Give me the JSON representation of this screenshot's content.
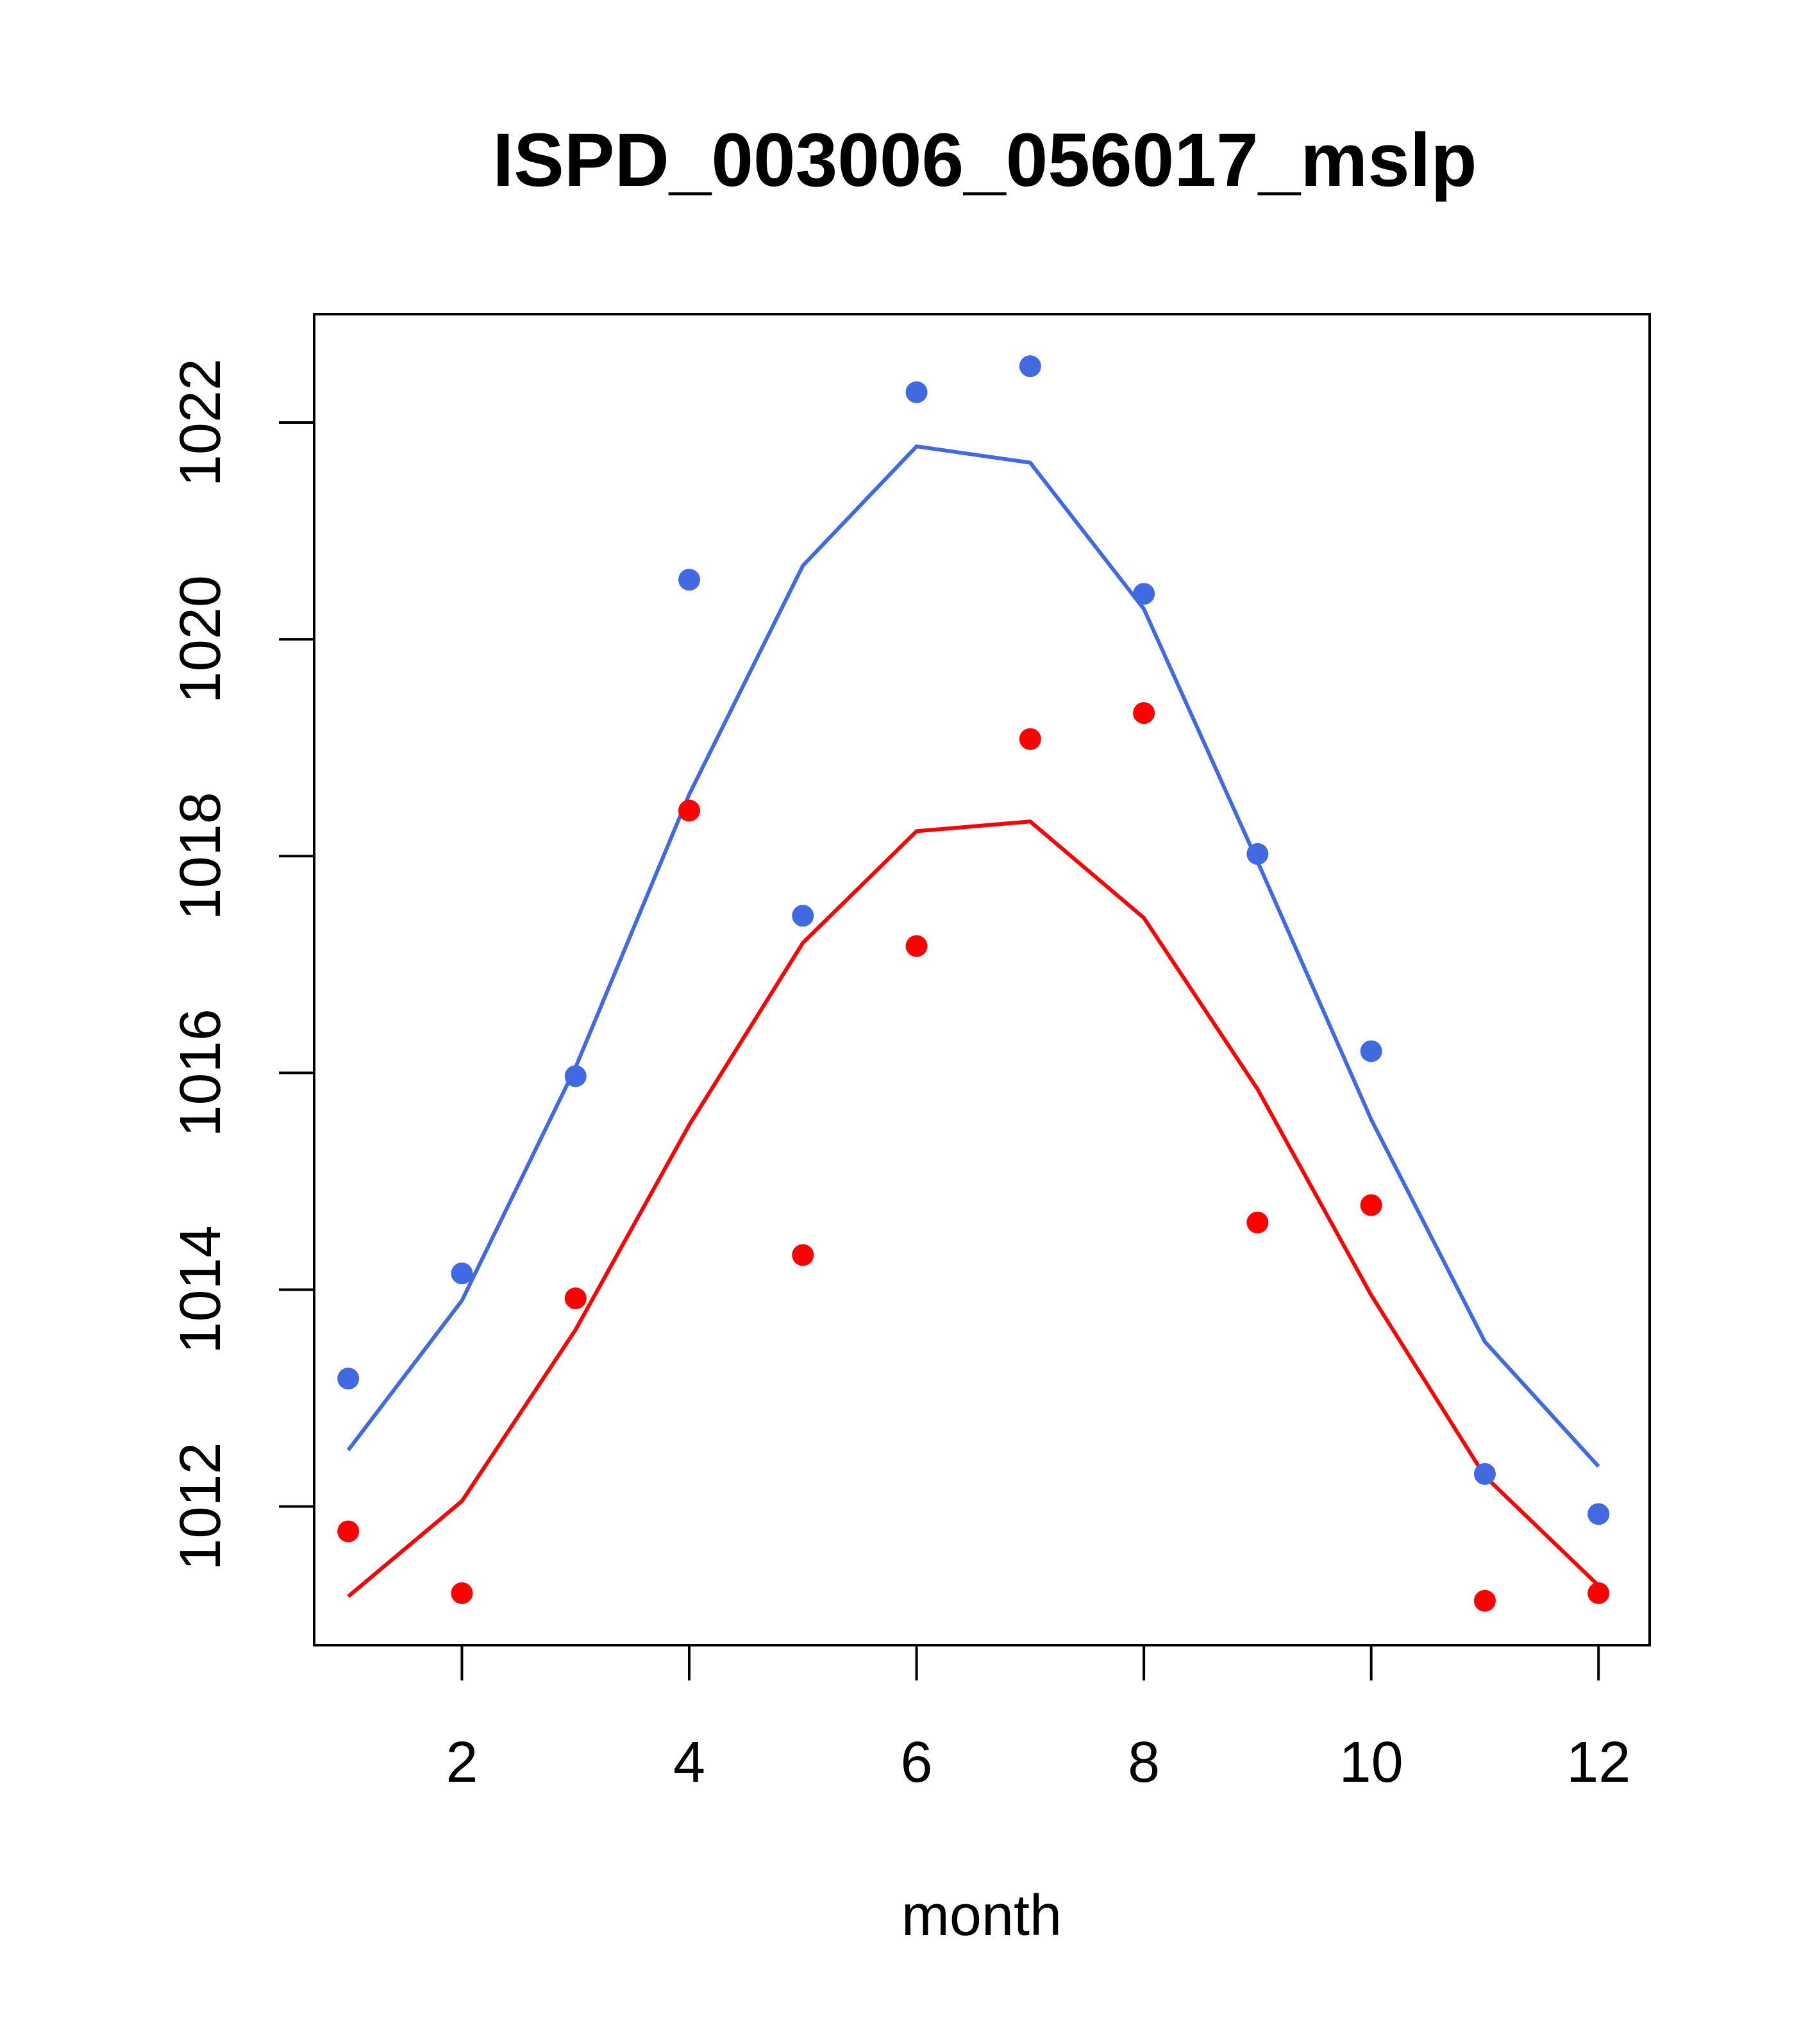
{
  "chart_data": {
    "type": "line",
    "title": "ISPD_003006_056017_mslp",
    "xlabel": "month",
    "ylabel": "",
    "xlim": [
      0.7,
      12.45
    ],
    "ylim": [
      1010.72,
      1023.0
    ],
    "xticks": [
      2,
      4,
      6,
      8,
      10,
      12
    ],
    "yticks": [
      1012,
      1014,
      1016,
      1018,
      1020,
      1022
    ],
    "x": [
      1,
      2,
      3,
      4,
      5,
      6,
      7,
      8,
      9,
      10,
      11,
      12
    ],
    "series": [
      {
        "name": "blue-points",
        "kind": "points",
        "color": "#4169E1",
        "values": [
          1013.18,
          1014.15,
          1015.97,
          1020.55,
          1017.45,
          1022.28,
          1022.52,
          1020.42,
          1018.02,
          1016.2,
          1012.3,
          1011.93
        ]
      },
      {
        "name": "blue-line",
        "kind": "line",
        "color": "#4169E1",
        "values": [
          1012.52,
          1013.9,
          1016.05,
          1018.57,
          1020.68,
          1021.78,
          1021.63,
          1020.28,
          1017.95,
          1015.57,
          1013.52,
          1012.37
        ]
      },
      {
        "name": "red-points",
        "kind": "points",
        "color": "#FF0000",
        "values": [
          1011.77,
          1011.2,
          1013.92,
          1018.42,
          1014.32,
          1017.17,
          1019.08,
          1019.32,
          1014.62,
          1014.78,
          1011.13,
          1011.2
        ]
      },
      {
        "name": "red-line",
        "kind": "line",
        "color": "#FF0000",
        "values": [
          1011.17,
          1012.05,
          1013.63,
          1015.52,
          1017.2,
          1018.23,
          1018.32,
          1017.43,
          1015.85,
          1013.95,
          1012.28,
          1011.27
        ]
      }
    ]
  }
}
